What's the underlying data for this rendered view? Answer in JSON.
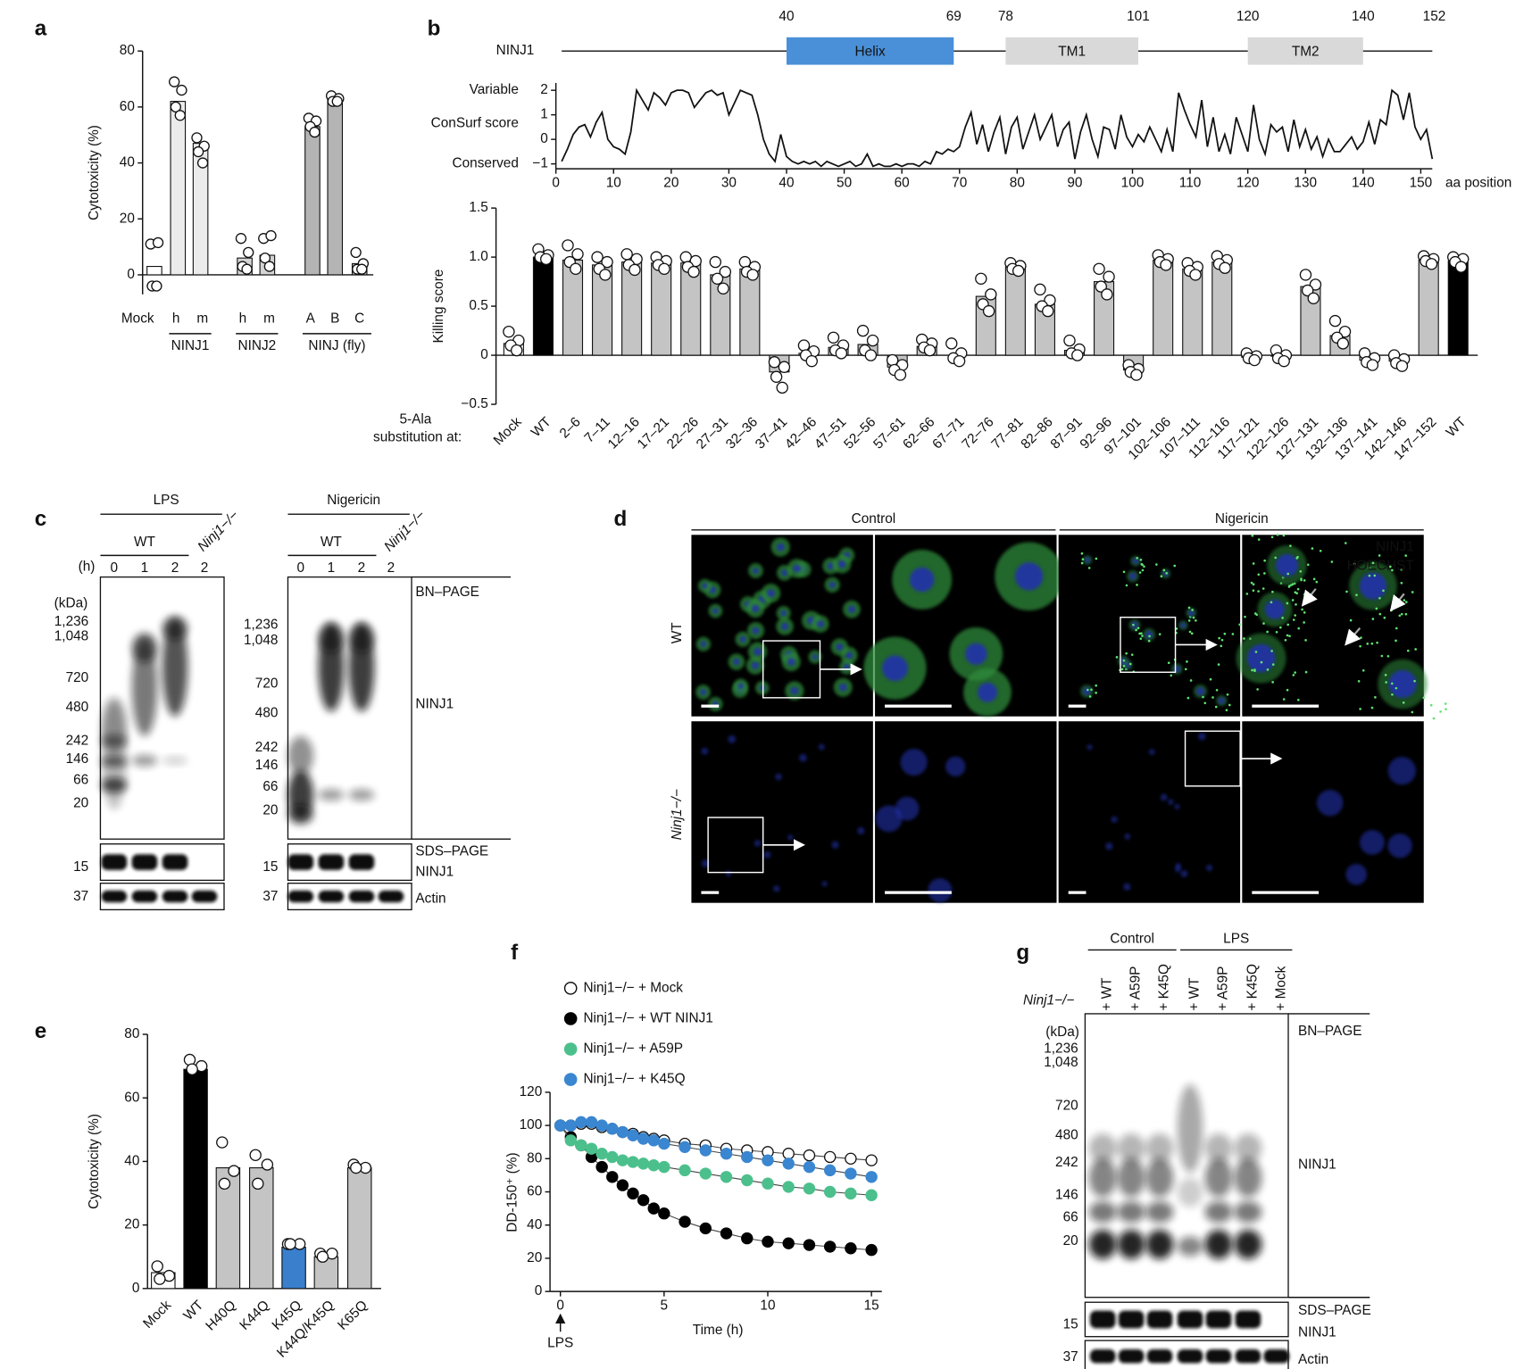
{
  "panel_labels": [
    "a",
    "b",
    "c",
    "d",
    "e",
    "f",
    "g"
  ],
  "chart_data": [
    {
      "type": "bar",
      "y_label": "Cytotoxicity (%)",
      "categories": [
        "Mock",
        "h",
        "m",
        "h",
        "m",
        "A",
        "B",
        "C"
      ],
      "groups": [
        "NINJ1",
        "NINJ2",
        "NINJ (fly)"
      ],
      "values": [
        3,
        62,
        47,
        6,
        7,
        53,
        63,
        4
      ],
      "colors": [
        "#ffffff",
        "#ebebeb",
        "#ebebeb",
        "#d4d4d4",
        "#d4d4d4",
        "#b4b4b4",
        "#b4b4b4",
        "#b4b4b4"
      ],
      "points": [
        [
          11,
          11.5,
          -4,
          -4
        ],
        [
          69,
          66,
          60,
          57
        ],
        [
          49,
          46,
          44,
          40
        ],
        [
          13,
          8,
          3,
          2
        ],
        [
          13,
          14,
          6,
          3
        ],
        [
          56,
          55,
          53,
          51
        ],
        [
          64,
          63,
          62,
          62
        ],
        [
          8,
          4,
          2,
          2
        ]
      ],
      "ylim": [
        -7,
        80
      ],
      "yticks": [
        0,
        20,
        40,
        60,
        80
      ]
    },
    {
      "type": "line",
      "y_label": "ConSurf score",
      "y_top_label": "Variable",
      "y_bottom_label": "Conserved",
      "x_label": "aa position",
      "x": [
        1,
        2,
        3,
        4,
        5,
        6,
        7,
        8,
        9,
        10,
        11,
        12,
        13,
        14,
        15,
        16,
        17,
        18,
        19,
        20,
        21,
        22,
        23,
        24,
        25,
        26,
        27,
        28,
        29,
        30,
        31,
        32,
        33,
        34,
        35,
        36,
        37,
        38,
        39,
        40,
        41,
        42,
        43,
        44,
        45,
        46,
        47,
        48,
        49,
        50,
        51,
        52,
        53,
        54,
        55,
        56,
        57,
        58,
        59,
        60,
        61,
        62,
        63,
        64,
        65,
        66,
        67,
        68,
        69,
        70,
        71,
        72,
        73,
        74,
        75,
        76,
        77,
        78,
        79,
        80,
        81,
        82,
        83,
        84,
        85,
        86,
        87,
        88,
        89,
        90,
        91,
        92,
        93,
        94,
        95,
        96,
        97,
        98,
        99,
        100,
        101,
        102,
        103,
        104,
        105,
        106,
        107,
        108,
        109,
        110,
        111,
        112,
        113,
        114,
        115,
        116,
        117,
        118,
        119,
        120,
        121,
        122,
        123,
        124,
        125,
        126,
        127,
        128,
        129,
        130,
        131,
        132,
        133,
        134,
        135,
        136,
        137,
        138,
        139,
        140,
        141,
        142,
        143,
        144,
        145,
        146,
        147,
        148,
        149,
        150,
        151,
        152
      ],
      "series": [
        {
          "name": "ConSurf score",
          "color": "#111111",
          "values": [
            -0.9,
            -0.4,
            0.2,
            0.5,
            0.6,
            0.1,
            0.7,
            1.1,
            0.0,
            -0.3,
            -0.4,
            -0.6,
            0.3,
            2.0,
            1.6,
            1.2,
            1.9,
            1.7,
            1.4,
            1.9,
            2.0,
            2.0,
            1.9,
            1.3,
            1.6,
            1.9,
            2.0,
            1.8,
            1.9,
            1.0,
            1.5,
            2.0,
            1.9,
            1.8,
            1.0,
            0.0,
            -0.6,
            -0.9,
            0.2,
            -0.7,
            -0.9,
            -1.0,
            -0.9,
            -1.0,
            -0.9,
            -1.1,
            -0.9,
            -1.0,
            -1.1,
            -1.0,
            -0.9,
            -1.1,
            -1.0,
            -0.6,
            -1.1,
            -1.0,
            -1.1,
            -1.1,
            -1.0,
            -1.1,
            -1.0,
            -1.0,
            -1.1,
            -0.9,
            -1.0,
            -0.5,
            -0.6,
            -0.4,
            -0.5,
            -0.3,
            0.5,
            1.1,
            -0.2,
            0.6,
            -0.5,
            0.3,
            0.9,
            -0.6,
            0.5,
            0.9,
            -0.4,
            0.3,
            1.0,
            0.0,
            0.5,
            1.0,
            -0.3,
            0.4,
            0.7,
            -0.8,
            0.3,
            1.0,
            0.0,
            -0.7,
            0.5,
            0.4,
            -0.4,
            1.0,
            0.1,
            -0.3,
            0.2,
            -0.1,
            0.5,
            0.0,
            -0.5,
            0.4,
            -0.5,
            1.9,
            1.2,
            0.6,
            0.1,
            1.6,
            -0.3,
            0.9,
            -0.5,
            0.2,
            -0.6,
            0.9,
            0.2,
            -0.5,
            1.4,
            0.0,
            -0.6,
            0.6,
            0.3,
            0.5,
            -0.5,
            0.8,
            -0.3,
            0.4,
            -0.4,
            0.1,
            -0.7,
            0.0,
            -0.5,
            -0.5,
            -0.2,
            0.1,
            -0.4,
            -0.1,
            0.7,
            -0.2,
            0.8,
            0.6,
            2.0,
            1.8,
            0.8,
            1.9,
            0.5,
            0.0,
            0.4,
            -0.8
          ]
        }
      ],
      "xlim": [
        0,
        152
      ],
      "xticks": [
        0,
        10,
        20,
        30,
        40,
        50,
        60,
        70,
        80,
        90,
        100,
        110,
        120,
        130,
        140,
        150
      ],
      "ylim": [
        -1.2,
        2.3
      ],
      "yticks": [
        {
          "value": -1,
          "label": "−1"
        },
        0,
        1,
        2
      ]
    },
    {
      "type": "bar",
      "y_label": "Killing score",
      "x_label": [
        "5-Ala",
        "substitution at:"
      ],
      "categories": [
        "Mock",
        "WT",
        "2–6",
        "7–11",
        "12–16",
        "17–21",
        "22–26",
        "27–31",
        "32–36",
        "37–41",
        "42–46",
        "47–51",
        "52–56",
        "57–61",
        "62–66",
        "67–71",
        "72–76",
        "77–81",
        "82–86",
        "87–91",
        "92–96",
        "97–101",
        "102–106",
        "107–111",
        "112–116",
        "117–121",
        "122–126",
        "127–131",
        "132–136",
        "137–141",
        "142–146",
        "147–152",
        "WT"
      ],
      "values": [
        0.12,
        1.0,
        0.97,
        0.92,
        0.95,
        0.94,
        0.94,
        0.82,
        0.88,
        -0.17,
        0.02,
        0.08,
        0.11,
        -0.12,
        0.09,
        0.0,
        0.6,
        0.9,
        0.52,
        0.05,
        0.75,
        -0.15,
        0.97,
        0.88,
        0.95,
        -0.02,
        -0.01,
        0.7,
        0.2,
        -0.05,
        -0.06,
        0.97,
        0.96
      ],
      "colors": [
        "#ffffff",
        "#000000",
        "#c4c4c4",
        "#c4c4c4",
        "#c4c4c4",
        "#c4c4c4",
        "#c4c4c4",
        "#c4c4c4",
        "#c4c4c4",
        "#c4c4c4",
        "#c4c4c4",
        "#c4c4c4",
        "#c4c4c4",
        "#c4c4c4",
        "#c4c4c4",
        "#c4c4c4",
        "#c4c4c4",
        "#c4c4c4",
        "#c4c4c4",
        "#c4c4c4",
        "#c4c4c4",
        "#c4c4c4",
        "#c4c4c4",
        "#c4c4c4",
        "#c4c4c4",
        "#c4c4c4",
        "#c4c4c4",
        "#c4c4c4",
        "#c4c4c4",
        "#c4c4c4",
        "#c4c4c4",
        "#c4c4c4",
        "#000000"
      ],
      "points": [
        [
          0.24,
          0.15,
          0.1,
          0.05
        ],
        [
          1.08,
          1.02,
          1.0,
          0.98
        ],
        [
          1.12,
          1.03,
          0.95,
          0.88
        ],
        [
          1.0,
          0.95,
          0.88,
          0.82
        ],
        [
          1.03,
          0.98,
          0.92,
          0.87
        ],
        [
          1.0,
          0.96,
          0.92,
          0.88
        ],
        [
          1.0,
          0.96,
          0.9,
          0.85
        ],
        [
          0.95,
          0.85,
          0.78,
          0.68
        ],
        [
          0.95,
          0.9,
          0.85,
          0.82
        ],
        [
          -0.07,
          -0.12,
          -0.22,
          -0.33
        ],
        [
          0.1,
          0.04,
          0.0,
          -0.06
        ],
        [
          0.18,
          0.1,
          0.05,
          0.02
        ],
        [
          0.25,
          0.15,
          0.05,
          0.0
        ],
        [
          -0.05,
          -0.1,
          -0.15,
          -0.2
        ],
        [
          0.16,
          0.12,
          0.08,
          0.05
        ],
        [
          0.12,
          0.02,
          -0.03,
          -0.06
        ],
        [
          0.78,
          0.62,
          0.52,
          0.45
        ],
        [
          0.94,
          0.91,
          0.88,
          0.86
        ],
        [
          0.67,
          0.56,
          0.5,
          0.45
        ],
        [
          0.15,
          0.06,
          0.02,
          0.0
        ],
        [
          0.88,
          0.8,
          0.7,
          0.62
        ],
        [
          -0.1,
          -0.14,
          -0.17,
          -0.2
        ],
        [
          1.02,
          0.98,
          0.95,
          0.92
        ],
        [
          0.94,
          0.9,
          0.86,
          0.82
        ],
        [
          1.01,
          0.97,
          0.93,
          0.89
        ],
        [
          0.02,
          -0.01,
          -0.03,
          -0.05
        ],
        [
          0.05,
          0.0,
          -0.03,
          -0.06
        ],
        [
          0.82,
          0.72,
          0.66,
          0.58
        ],
        [
          0.35,
          0.24,
          0.18,
          0.12
        ],
        [
          0.02,
          -0.03,
          -0.07,
          -0.1
        ],
        [
          0.0,
          -0.04,
          -0.08,
          -0.11
        ],
        [
          1.01,
          0.98,
          0.96,
          0.93
        ],
        [
          1.0,
          0.98,
          0.95,
          0.9
        ]
      ],
      "ylim": [
        -0.5,
        1.5
      ],
      "yticks": [
        {
          "value": -0.5,
          "label": "−0.5"
        },
        0,
        0.5,
        {
          "value": 1,
          "label": "1.0"
        },
        1.5
      ]
    },
    {
      "type": "bar",
      "y_label": "Cytotoxicity (%)",
      "categories": [
        "Mock",
        "WT",
        "H40Q",
        "K44Q",
        "K45Q",
        "K44Q/K45Q",
        "K65Q"
      ],
      "values": [
        5,
        69,
        38,
        38,
        13,
        10,
        38
      ],
      "colors": [
        "#ffffff",
        "#000000",
        "#c4c4c4",
        "#c4c4c4",
        "#3a7fcc",
        "#c4c4c4",
        "#c4c4c4"
      ],
      "points": [
        [
          7,
          4,
          3
        ],
        [
          72,
          70,
          69
        ],
        [
          46,
          37,
          33
        ],
        [
          42,
          39,
          33
        ],
        [
          14,
          14,
          14
        ],
        [
          11,
          11,
          10
        ],
        [
          39,
          38,
          38
        ]
      ],
      "ylim": [
        0,
        80
      ],
      "yticks": [
        0,
        20,
        40,
        60,
        80
      ]
    },
    {
      "type": "line",
      "x_label": "Time (h)",
      "y_label": "DD-150⁺ (%)",
      "annotation": "LPS",
      "x": [
        0,
        0.5,
        1,
        1.5,
        2,
        2.5,
        3,
        3.5,
        4,
        4.5,
        5,
        6,
        7,
        8,
        9,
        10,
        11,
        12,
        13,
        14,
        15
      ],
      "series": [
        {
          "name": "Ninj1−/− + Mock",
          "color": "#ffffff",
          "values": [
            100,
            100,
            101,
            101,
            99,
            98,
            96,
            95,
            93,
            92,
            91,
            89,
            88,
            86,
            85,
            84,
            83,
            82,
            81,
            80,
            79
          ]
        },
        {
          "name": "Ninj1−/− + WT NINJ1",
          "color": "#000000",
          "values": [
            100,
            93,
            88,
            81,
            75,
            69,
            64,
            59,
            55,
            50,
            47,
            42,
            38,
            35,
            32,
            30,
            29,
            28,
            27,
            26,
            25
          ]
        },
        {
          "name": "Ninj1−/− + A59P",
          "color": "#4cc08c",
          "values": [
            100,
            91,
            88,
            86,
            83,
            81,
            79,
            78,
            77,
            76,
            75,
            73,
            71,
            69,
            67,
            65,
            63,
            62,
            60,
            59,
            58
          ]
        },
        {
          "name": "Ninj1−/− + K45Q",
          "color": "#3a86d0",
          "values": [
            100,
            100,
            102,
            102,
            100,
            98,
            96,
            94,
            92,
            91,
            89,
            87,
            85,
            83,
            81,
            79,
            77,
            75,
            73,
            71,
            69
          ]
        }
      ],
      "xlim": [
        -0.5,
        15.5
      ],
      "xticks": [
        0,
        5,
        10,
        15
      ],
      "ylim": [
        0,
        120
      ],
      "yticks": [
        0,
        20,
        40,
        60,
        80,
        100,
        120
      ]
    }
  ],
  "protein_map": {
    "name": "NINJ1",
    "length": 152,
    "domains": [
      {
        "label": "Helix",
        "start": 40,
        "end": 69,
        "color": "#4a90d9"
      },
      {
        "label": "TM1",
        "start": 78,
        "end": 101,
        "color": "#d9d9d9"
      },
      {
        "label": "TM2",
        "start": 120,
        "end": 140,
        "color": "#d9d9d9"
      }
    ]
  },
  "blots_c": [
    {
      "treatment": "LPS",
      "wt": "WT",
      "ko": "Ninj1−/−",
      "time_unit": "(h)",
      "lanes": [
        "0",
        "1",
        "2",
        "2"
      ],
      "kda_unit": "(kDa)",
      "markers": [
        "1,236",
        "1,048",
        "720",
        "480",
        "242",
        "146",
        "66",
        "20"
      ],
      "sds_marker": "15",
      "actin_marker": "37"
    },
    {
      "treatment": "Nigericin",
      "wt": "WT",
      "ko": "Ninj1−/−",
      "lanes": [
        "0",
        "1",
        "2",
        "2"
      ],
      "markers": [
        "1,236",
        "1,048",
        "720",
        "480",
        "242",
        "146",
        "66",
        "20"
      ],
      "sds_marker": "15",
      "actin_marker": "37",
      "right_labels": [
        "BN–PAGE",
        "NINJ1",
        "SDS–PAGE",
        "NINJ1",
        "Actin"
      ]
    }
  ],
  "microscopy_d": {
    "columns": [
      "Control",
      "Nigericin"
    ],
    "rows": [
      "WT",
      "Ninj1−/−"
    ],
    "channels": [
      "NINJ1",
      "HOECHST"
    ]
  },
  "blot_g": {
    "groups": [
      "Control",
      "LPS"
    ],
    "genotype": "Ninj1−/−",
    "lanes": [
      "+ WT",
      "+ A59P",
      "+ K45Q",
      "+ WT",
      "+ A59P",
      "+ K45Q",
      "+ Mock"
    ],
    "kda_unit": "(kDa)",
    "markers": [
      "1,236",
      "1,048",
      "720",
      "480",
      "242",
      "146",
      "66",
      "20"
    ],
    "sds_marker": "15",
    "actin_marker": "37",
    "right_labels": [
      "BN–PAGE",
      "NINJ1",
      "SDS–PAGE",
      "NINJ1",
      "Actin"
    ]
  }
}
